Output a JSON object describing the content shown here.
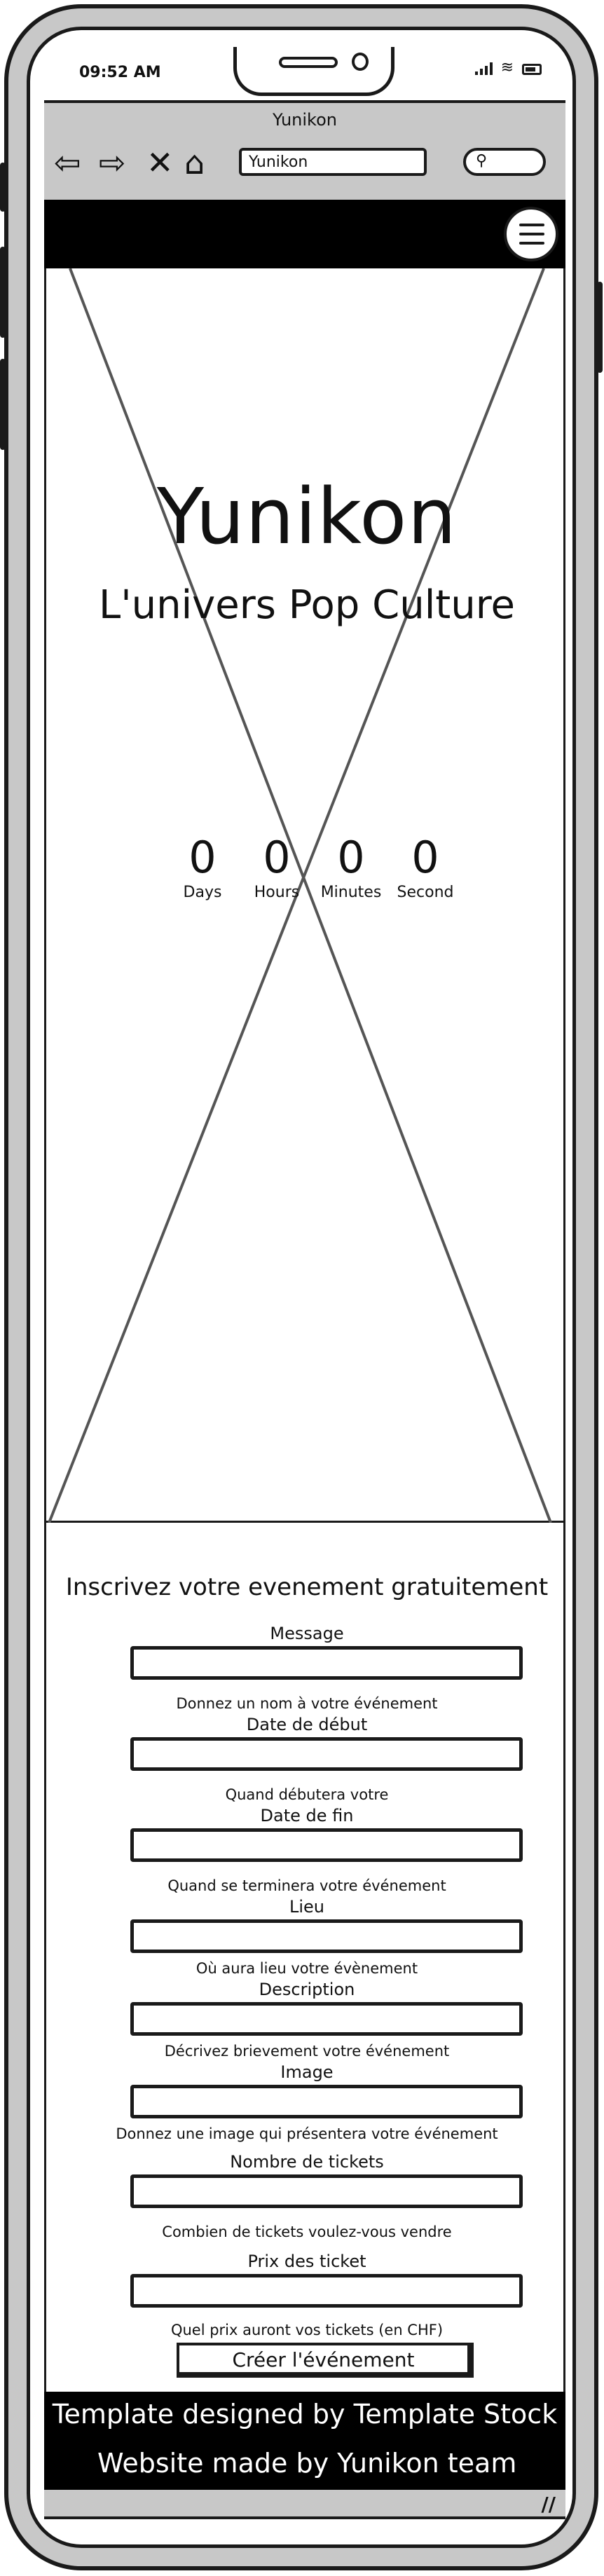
{
  "status_bar": {
    "time": "09:52 AM"
  },
  "browser": {
    "title": "Yunikon",
    "url": "Yunikon"
  },
  "hero": {
    "title": "Yunikon",
    "subtitle": "L'univers Pop Culture",
    "countdown": [
      {
        "value": "0",
        "label": "Days"
      },
      {
        "value": "0",
        "label": "Hours"
      },
      {
        "value": "0",
        "label": "Minutes"
      },
      {
        "value": "0",
        "label": "Second"
      }
    ]
  },
  "form": {
    "title": "Inscrivez votre evenement gratuitement",
    "fields": [
      {
        "label": "Message",
        "value": "",
        "help": "Donnez un nom à votre événement"
      },
      {
        "label": "Date de début",
        "value": "",
        "help": "Quand débutera votre"
      },
      {
        "label": "Date de fin",
        "value": "",
        "help": "Quand se terminera votre événement"
      },
      {
        "label": "Lieu",
        "value": "",
        "help": "Où aura lieu votre évènement"
      },
      {
        "label": "Description",
        "value": "",
        "help": "Décrivez brievement votre événement"
      },
      {
        "label": "Image",
        "value": "",
        "help": "Donnez une image qui présentera votre événement"
      },
      {
        "label": "Nombre de tickets",
        "value": "",
        "help": "Combien de tickets voulez-vous vendre"
      },
      {
        "label": "Prix des ticket",
        "value": "",
        "help": "Quel prix auront vos tickets (en CHF)"
      }
    ],
    "submit_label": "Créer l'événement"
  },
  "footer": {
    "line1": "Template designed by Template Stock",
    "line2": "Website made by Yunikon team"
  },
  "icons": {
    "back": "arrow-left-icon",
    "forward": "arrow-right-icon",
    "stop": "close-icon",
    "home": "home-icon",
    "search": "search-icon",
    "menu": "hamburger-menu-icon"
  }
}
